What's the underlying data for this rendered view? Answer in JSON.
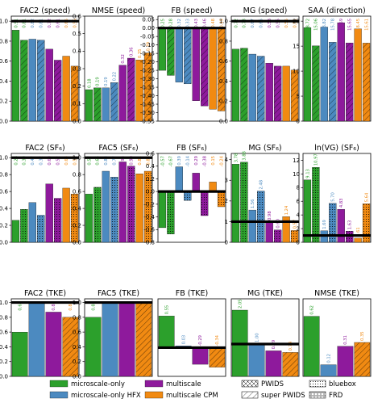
{
  "colors": {
    "microscale-only": "#2ca02c",
    "microscale-only HFX": "#4c8ac0",
    "multiscale": "#8e1a9c",
    "multiscale CPM": "#f18a12",
    "reference_line": "#000000"
  },
  "legend": {
    "series": [
      {
        "name": "microscale-only",
        "color": "#2ca02c"
      },
      {
        "name": "microscale-only HFX",
        "color": "#4c8ac0"
      },
      {
        "name": "multiscale",
        "color": "#8e1a9c"
      },
      {
        "name": "multiscale CPM",
        "color": "#f18a12"
      }
    ],
    "hatches": [
      {
        "name": "PWIDS",
        "pattern": "cross"
      },
      {
        "name": "super PWIDS",
        "pattern": "diag"
      },
      {
        "name": "bluebox",
        "pattern": "dots"
      },
      {
        "name": "FRD",
        "pattern": "rings"
      }
    ]
  },
  "chart_data": [
    {
      "type": "bar",
      "title": "FAC2  (speed)",
      "ylim": [
        0,
        1.05
      ],
      "ref": 1.0,
      "yticks": [
        "0.0",
        "0.2",
        "0.4",
        "0.6",
        "0.8",
        "1.0"
      ],
      "labels_top": true,
      "bars": [
        {
          "v": 0.91,
          "c": "microscale-only",
          "h": "none"
        },
        {
          "v": 0.81,
          "c": "microscale-only",
          "h": "diag"
        },
        {
          "v": 0.82,
          "c": "microscale-only HFX",
          "h": "none"
        },
        {
          "v": 0.81,
          "c": "microscale-only HFX",
          "h": "diag"
        },
        {
          "v": 0.72,
          "c": "multiscale",
          "h": "none"
        },
        {
          "v": 0.61,
          "c": "multiscale",
          "h": "diag"
        },
        {
          "v": 0.65,
          "c": "multiscale CPM",
          "h": "none"
        },
        {
          "v": 0.55,
          "c": "multiscale CPM",
          "h": "diag"
        }
      ]
    },
    {
      "type": "bar",
      "title": "NMSE  (speed)",
      "ylim": [
        0,
        0.6
      ],
      "ref": null,
      "yticks": [
        "0.0",
        "0.1",
        "0.2",
        "0.3",
        "0.4",
        "0.5",
        "0.6"
      ],
      "labels_top": false,
      "bars": [
        {
          "v": 0.18,
          "c": "microscale-only",
          "h": "none"
        },
        {
          "v": 0.19,
          "c": "microscale-only",
          "h": "diag"
        },
        {
          "v": 0.19,
          "c": "microscale-only HFX",
          "h": "none"
        },
        {
          "v": 0.22,
          "c": "microscale-only HFX",
          "h": "diag"
        },
        {
          "v": 0.32,
          "c": "multiscale",
          "h": "none"
        },
        {
          "v": 0.36,
          "c": "multiscale",
          "h": "diag"
        },
        {
          "v": 0.35,
          "c": "multiscale CPM",
          "h": "none"
        },
        {
          "v": 0.39,
          "c": "multiscale CPM",
          "h": "diag"
        }
      ]
    },
    {
      "type": "bar",
      "title": "FB  (speed)",
      "ylim": [
        -0.55,
        0.07
      ],
      "ref": 0.0,
      "yticks": [
        "0.05",
        "0.00",
        "-0.05",
        "-0.10",
        "-0.15",
        "-0.20",
        "-0.25",
        "-0.30",
        "-0.35",
        "-0.40",
        "-0.45",
        "-0.50",
        "-0.55"
      ],
      "ytick_values": [
        0.05,
        0,
        -0.05,
        -0.1,
        -0.15,
        -0.2,
        -0.25,
        -0.3,
        -0.35,
        -0.4,
        -0.45,
        -0.5,
        -0.55
      ],
      "labels_top": true,
      "bars": [
        {
          "v": -0.25,
          "c": "microscale-only",
          "h": "none"
        },
        {
          "v": -0.28,
          "c": "microscale-only",
          "h": "diag"
        },
        {
          "v": -0.32,
          "c": "microscale-only HFX",
          "h": "none"
        },
        {
          "v": -0.33,
          "c": "microscale-only HFX",
          "h": "diag"
        },
        {
          "v": -0.43,
          "c": "multiscale",
          "h": "none"
        },
        {
          "v": -0.46,
          "c": "multiscale",
          "h": "diag"
        },
        {
          "v": -0.48,
          "c": "multiscale CPM",
          "h": "none"
        },
        {
          "v": -0.49,
          "c": "multiscale CPM",
          "h": "diag"
        }
      ]
    },
    {
      "type": "bar",
      "title": "MG  (speed)",
      "ylim": [
        0,
        1.05
      ],
      "ref": 1.0,
      "yticks": [
        "0.0",
        "0.2",
        "0.4",
        "0.6",
        "0.8",
        "1.0"
      ],
      "labels_top": true,
      "bars": [
        {
          "v": 0.72,
          "c": "microscale-only",
          "h": "none"
        },
        {
          "v": 0.73,
          "c": "microscale-only",
          "h": "diag"
        },
        {
          "v": 0.67,
          "c": "microscale-only HFX",
          "h": "none"
        },
        {
          "v": 0.65,
          "c": "microscale-only HFX",
          "h": "diag"
        },
        {
          "v": 0.58,
          "c": "multiscale",
          "h": "none"
        },
        {
          "v": 0.55,
          "c": "multiscale",
          "h": "diag"
        },
        {
          "v": 0.55,
          "c": "multiscale CPM",
          "h": "none"
        },
        {
          "v": 0.51,
          "c": "multiscale CPM",
          "h": "diag"
        }
      ]
    },
    {
      "type": "bar",
      "title": "SAA  (direction)",
      "ylim": [
        0,
        21
      ],
      "ref": null,
      "yticks": [
        "0",
        "5",
        "10",
        "15",
        "20"
      ],
      "labels_top": true,
      "bars": [
        {
          "v": 18.72,
          "c": "microscale-only",
          "h": "none"
        },
        {
          "v": 15.06,
          "c": "microscale-only",
          "h": "diag"
        },
        {
          "v": 18.82,
          "c": "microscale-only HFX",
          "h": "none"
        },
        {
          "v": 15.78,
          "c": "microscale-only HFX",
          "h": "diag"
        },
        {
          "v": 19.69,
          "c": "multiscale",
          "h": "none"
        },
        {
          "v": 15.65,
          "c": "multiscale",
          "h": "diag"
        },
        {
          "v": 18.45,
          "c": "multiscale CPM",
          "h": "none"
        },
        {
          "v": 15.61,
          "c": "multiscale CPM",
          "h": "diag"
        }
      ]
    },
    {
      "type": "bar",
      "title": "FAC2  (SF₆)",
      "ylim": [
        0,
        1.05
      ],
      "ref": 1.0,
      "yticks": [
        "0.0",
        "0.2",
        "0.4",
        "0.6",
        "0.8",
        "1.0"
      ],
      "labels_top": true,
      "bars": [
        {
          "v": 0.26,
          "c": "microscale-only",
          "h": "none"
        },
        {
          "v": 0.39,
          "c": "microscale-only",
          "h": "dots"
        },
        {
          "v": 0.47,
          "c": "microscale-only HFX",
          "h": "none"
        },
        {
          "v": 0.32,
          "c": "microscale-only HFX",
          "h": "dots"
        },
        {
          "v": 0.69,
          "c": "multiscale",
          "h": "none"
        },
        {
          "v": 0.52,
          "c": "multiscale",
          "h": "dots"
        },
        {
          "v": 0.64,
          "c": "multiscale CPM",
          "h": "none"
        },
        {
          "v": 0.57,
          "c": "multiscale CPM",
          "h": "dots"
        }
      ]
    },
    {
      "type": "bar",
      "title": "FAC5  (SF₆)",
      "ylim": [
        0,
        1.05
      ],
      "ref": 1.0,
      "yticks": [
        "0.0",
        "0.2",
        "0.4",
        "0.6",
        "0.8",
        "1.0"
      ],
      "labels_top": true,
      "bars": [
        {
          "v": 0.57,
          "c": "microscale-only",
          "h": "none"
        },
        {
          "v": 0.65,
          "c": "microscale-only",
          "h": "dots"
        },
        {
          "v": 0.84,
          "c": "microscale-only HFX",
          "h": "none"
        },
        {
          "v": 0.77,
          "c": "microscale-only HFX",
          "h": "dots"
        },
        {
          "v": 0.95,
          "c": "multiscale",
          "h": "none"
        },
        {
          "v": 0.9,
          "c": "multiscale",
          "h": "dots"
        },
        {
          "v": 0.81,
          "c": "multiscale CPM",
          "h": "none"
        },
        {
          "v": 0.84,
          "c": "multiscale CPM",
          "h": "dots"
        }
      ]
    },
    {
      "type": "bar",
      "title": "FB  (SF₆)",
      "ylim": [
        -0.8,
        0.6
      ],
      "ref": 0.0,
      "yticks": [
        "0.6",
        "0.4",
        "0.2",
        "0.0",
        "-0.2",
        "-0.4",
        "-0.6",
        "-0.8"
      ],
      "ytick_values": [
        0.6,
        0.4,
        0.2,
        0,
        -0.2,
        -0.4,
        -0.6,
        -0.8
      ],
      "labels_top": true,
      "bars": [
        {
          "v": -0.57,
          "c": "microscale-only",
          "h": "none"
        },
        {
          "v": -0.67,
          "c": "microscale-only",
          "h": "dots"
        },
        {
          "v": 0.39,
          "c": "microscale-only HFX",
          "h": "none"
        },
        {
          "v": -0.14,
          "c": "microscale-only HFX",
          "h": "dots"
        },
        {
          "v": 0.29,
          "c": "multiscale",
          "h": "none"
        },
        {
          "v": -0.38,
          "c": "multiscale",
          "h": "dots"
        },
        {
          "v": 0.15,
          "c": "multiscale CPM",
          "h": "none"
        },
        {
          "v": -0.24,
          "c": "multiscale CPM",
          "h": "dots"
        }
      ]
    },
    {
      "type": "bar",
      "title": "MG  (SF₆)",
      "ylim": [
        0,
        4.3
      ],
      "ref": 1.0,
      "yticks": [
        "0",
        "1",
        "2",
        "3",
        "4"
      ],
      "labels_top": false,
      "bars": [
        {
          "v": 3.78,
          "c": "microscale-only",
          "h": "none"
        },
        {
          "v": 3.88,
          "c": "microscale-only",
          "h": "dots"
        },
        {
          "v": 1.56,
          "c": "microscale-only HFX",
          "h": "none"
        },
        {
          "v": 2.48,
          "c": "microscale-only HFX",
          "h": "dots"
        },
        {
          "v": 0.98,
          "c": "multiscale",
          "h": "none"
        },
        {
          "v": 0.6,
          "c": "multiscale",
          "h": "dots"
        },
        {
          "v": 1.24,
          "c": "multiscale CPM",
          "h": "none"
        },
        {
          "v": 0.57,
          "c": "multiscale CPM",
          "h": "dots"
        }
      ]
    },
    {
      "type": "bar",
      "title": "ln(VG)  (SF₆)",
      "ylim": [
        0,
        13
      ],
      "ref": 1.0,
      "yticks": [
        "0",
        "2",
        "4",
        "6",
        "8",
        "10",
        "12"
      ],
      "labels_top": false,
      "bars": [
        {
          "v": 9.13,
          "c": "microscale-only",
          "h": "none"
        },
        {
          "v": 10.97,
          "c": "microscale-only",
          "h": "dots"
        },
        {
          "v": 1.69,
          "c": "microscale-only HFX",
          "h": "none"
        },
        {
          "v": 5.7,
          "c": "microscale-only HFX",
          "h": "dots"
        },
        {
          "v": 4.83,
          "c": "multiscale",
          "h": "none"
        },
        {
          "v": 1.63,
          "c": "multiscale",
          "h": "dots"
        },
        {
          "v": 0.61,
          "c": "multiscale CPM",
          "h": "none"
        },
        {
          "v": 5.64,
          "c": "multiscale CPM",
          "h": "dots"
        }
      ]
    },
    {
      "type": "bar",
      "title": "FAC2  (TKE)",
      "ylim": [
        0,
        1.05
      ],
      "ref": 1.0,
      "yticks": [
        "0.0",
        "0.2",
        "0.4",
        "0.6",
        "0.8",
        "1.0"
      ],
      "labels_top": true,
      "bars": [
        {
          "v": 0.6,
          "c": "microscale-only",
          "h": "none"
        },
        {
          "v": 1.0,
          "c": "microscale-only HFX",
          "h": "none"
        },
        {
          "v": 0.87,
          "c": "multiscale",
          "h": "none"
        },
        {
          "v": 0.8,
          "c": "multiscale CPM",
          "h": "diag"
        }
      ]
    },
    {
      "type": "bar",
      "title": "FAC5  (TKE)",
      "ylim": [
        0,
        1.05
      ],
      "ref": 1.0,
      "yticks": [
        "0.0",
        "0.2",
        "0.4",
        "0.6",
        "0.8",
        "1.0"
      ],
      "labels_top": true,
      "bars": [
        {
          "v": 0.8,
          "c": "microscale-only",
          "h": "none"
        },
        {
          "v": 1.0,
          "c": "microscale-only HFX",
          "h": "none"
        },
        {
          "v": 1.0,
          "c": "multiscale",
          "h": "none"
        },
        {
          "v": 1.0,
          "c": "multiscale CPM",
          "h": "diag"
        }
      ]
    },
    {
      "type": "bar",
      "title": "FB  (TKE)",
      "ylim": [
        -0.5,
        0.85
      ],
      "ref": 0.0,
      "yticks": [],
      "labels_top": false,
      "bars": [
        {
          "v": 0.55,
          "c": "microscale-only",
          "h": "none"
        },
        {
          "v": 0.03,
          "c": "microscale-only HFX",
          "h": "none"
        },
        {
          "v": -0.29,
          "c": "multiscale",
          "h": "none"
        },
        {
          "v": -0.34,
          "c": "multiscale CPM",
          "h": "diag"
        }
      ]
    },
    {
      "type": "bar",
      "title": "MG  (TKE)",
      "ylim": [
        0,
        2.4
      ],
      "ref": 1.0,
      "yticks": [],
      "labels_top": false,
      "bars": [
        {
          "v": 2.05,
          "c": "microscale-only",
          "h": "none"
        },
        {
          "v": 1.0,
          "c": "microscale-only HFX",
          "h": "none"
        },
        {
          "v": 0.79,
          "c": "multiscale",
          "h": "none"
        },
        {
          "v": 0.74,
          "c": "multiscale CPM",
          "h": "diag"
        }
      ]
    },
    {
      "type": "bar",
      "title": "NMSE  (TKE)",
      "ylim": [
        0,
        0.8
      ],
      "ref": null,
      "yticks": [],
      "labels_top": false,
      "bars": [
        {
          "v": 0.62,
          "c": "microscale-only",
          "h": "none"
        },
        {
          "v": 0.12,
          "c": "microscale-only HFX",
          "h": "none"
        },
        {
          "v": 0.31,
          "c": "multiscale",
          "h": "none"
        },
        {
          "v": 0.35,
          "c": "multiscale CPM",
          "h": "diag"
        }
      ]
    }
  ]
}
